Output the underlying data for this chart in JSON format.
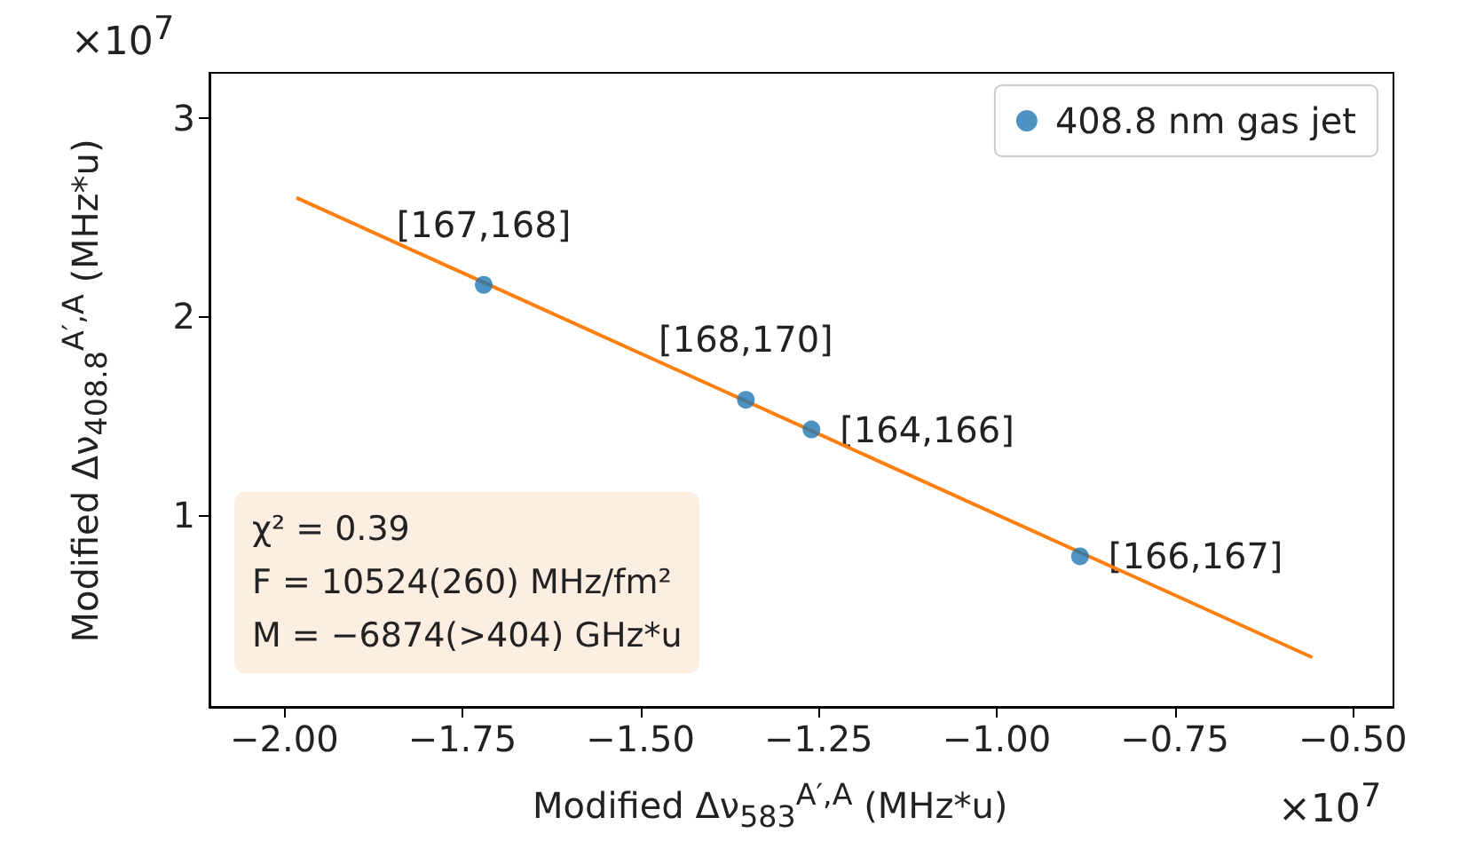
{
  "chart_data": {
    "type": "scatter",
    "xlabel": "Modified Δν$_{583}$$^{A′,A}$ (MHz*u)",
    "ylabel": "Modified Δν$_{408.8}$$^{A′,A}$ (MHz*u)",
    "series": [
      {
        "name": "408.8 nm gas jet",
        "marker": "circle",
        "color": "#1f77b4",
        "x": [
          -1.72,
          -1.352,
          -1.26,
          -0.883
        ],
        "values": [
          2.16,
          1.58,
          1.43,
          0.79
        ]
      },
      {
        "type": "line",
        "color": "#ff7f0e",
        "x": [
          -1.983,
          -0.557
        ],
        "values": [
          2.6,
          0.28
        ]
      }
    ],
    "xlim": [
      -2.105,
      -0.443
    ],
    "ylim": [
      0.03,
      3.23
    ],
    "xticks": [
      {
        "value": -2,
        "label": "−2.00"
      },
      {
        "value": -1.75,
        "label": "−1.75"
      },
      {
        "value": -1.5,
        "label": "−1.50"
      },
      {
        "value": -1.25,
        "label": "−1.25"
      },
      {
        "value": -1,
        "label": "−1.00"
      },
      {
        "value": -0.75,
        "label": "−0.75"
      },
      {
        "value": -0.5,
        "label": "−0.50"
      }
    ],
    "yticks": [
      1,
      2,
      3
    ],
    "annotations": [
      {
        "text": "[167,168]",
        "x": -1.72,
        "y": 2.16
      },
      {
        "text": "[168,170]",
        "x": -1.352,
        "y": 1.58
      },
      {
        "text": "[164,166]",
        "x": -1.26,
        "y": 1.43
      },
      {
        "text": "[166,167]",
        "x": -0.883,
        "y": 0.79
      },
      "×10$^{7}$",
      "×10$^{7}$",
      "χ² = 0.39",
      "F = 10524(260) MHz/fm²",
      "M = −6874(>404) GHz*u"
    ],
    "legend": "top right",
    "grid": false
  }
}
